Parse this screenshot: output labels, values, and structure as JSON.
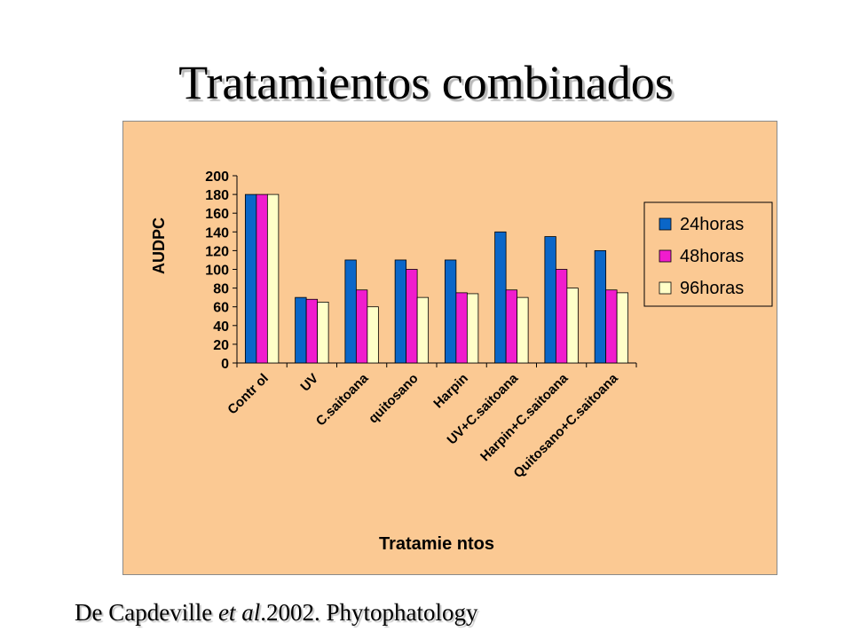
{
  "slide": {
    "title": "Tratamientos combinados",
    "citation": {
      "author": "De Capdeville ",
      "etal": "et al",
      "rest": ".2002. Phytophatology"
    }
  },
  "colors": {
    "background": "#fbc993",
    "series": [
      "#0a66c8",
      "#f01ccd",
      "#ffffc8"
    ]
  },
  "chart_data": {
    "type": "bar",
    "title": "",
    "xlabel": "Tratamie ntos",
    "ylabel": "AUDPC",
    "ylim": [
      0,
      200
    ],
    "yticks": [
      0,
      20,
      40,
      60,
      80,
      100,
      120,
      140,
      160,
      180,
      200
    ],
    "grid": false,
    "legend_position": "right",
    "categories": [
      "Contr ol",
      "UV",
      "C.saitoana",
      "quitosano",
      "Harpin",
      "UV+C.saitoana",
      "Harpin+C.saitoana",
      "Quitosano+C.saitoana"
    ],
    "series": [
      {
        "name": "24horas",
        "values": [
          180,
          70,
          110,
          110,
          110,
          140,
          135,
          120
        ]
      },
      {
        "name": "48horas",
        "values": [
          180,
          68,
          78,
          100,
          75,
          78,
          100,
          78
        ]
      },
      {
        "name": "96horas",
        "values": [
          180,
          65,
          60,
          70,
          74,
          70,
          80,
          75
        ]
      }
    ]
  }
}
